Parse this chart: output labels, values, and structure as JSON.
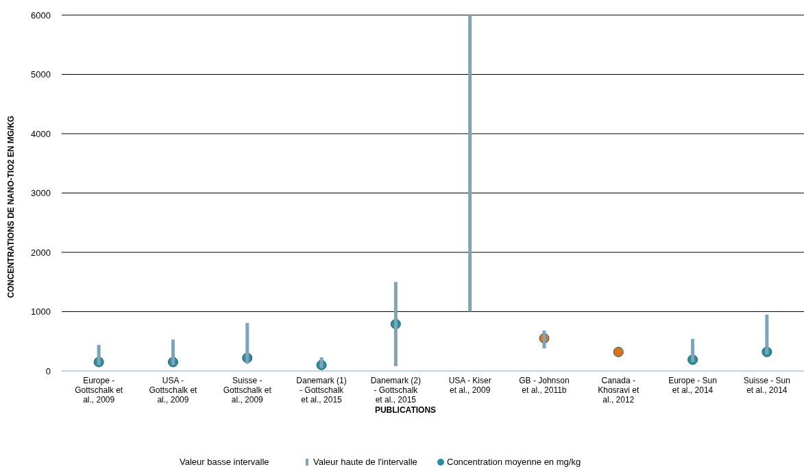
{
  "chart_data": {
    "type": "bar",
    "xlabel": "PUBLICATIONS",
    "ylabel": "CONCENTRATIONS DE NANO-TIO2 EN MG/KG",
    "annotations": [
      "Valeur basse intervalle"
    ],
    "categories": [
      "Europe - Gottschalk et al., 2009",
      "USA - Gottschalk et al., 2009",
      "Suisse - Gottschalk et al., 2009",
      "Danemark (1) - Gottschalk et al., 2015",
      "Danemark (2) - Gottschalk et al., 2015",
      "USA - Kiser et al., 2009",
      "GB - Johnson et al., 2011b",
      "Canada - Khosravi et al., 2012",
      "Europe - Sun et al., 2014",
      "Suisse - Sun et al., 2014"
    ],
    "series": [
      {
        "name": "Valeur haute de l'intervalle",
        "color": "#7fa3b8",
        "base": [
          100,
          100,
          120,
          50,
          80,
          1000,
          380,
          null,
          150,
          280
        ],
        "values": [
          340,
          430,
          690,
          180,
          1420,
          5000,
          300,
          null,
          390,
          670
        ]
      },
      {
        "name": "Concentration moyenne en mg/kg",
        "type": "scatter",
        "x": [
          "Europe - Gottschalk et al., 2009",
          "USA - Gottschalk et al., 2009",
          "Suisse - Gottschalk et al., 2009",
          "Danemark (1) - Gottschalk et al., 2015",
          "Danemark (2) - Gottschalk et al., 2015",
          "USA - Kiser et al., 2009",
          "GB - Johnson et al., 2011b",
          "Canada - Khosravi et al., 2012",
          "Europe - Sun et al., 2014",
          "Suisse - Sun et al., 2014"
        ],
        "color": "#2a8f9c",
        "colors": [
          "#2a8f9c",
          "#2a8f9c",
          "#2a8f9c",
          "#2a8f9c",
          "#2a8f9c",
          "#2a8f9c",
          "#d9741c",
          "#d9741c",
          "#2a8f9c",
          "#2a8f9c"
        ],
        "values": [
          150,
          150,
          220,
          100,
          790,
          null,
          550,
          320,
          190,
          320
        ]
      }
    ],
    "ylim": [
      0,
      6000
    ],
    "yticks": [
      0,
      1000,
      2000,
      3000,
      4000,
      5000,
      6000
    ],
    "grid": "y",
    "legend": "bottom",
    "marker": "circle"
  }
}
